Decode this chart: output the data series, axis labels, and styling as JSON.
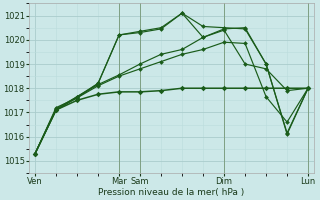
{
  "xlabel": "Pression niveau de la mer( hPa )",
  "ylim": [
    1014.5,
    1021.5
  ],
  "yticks": [
    1015,
    1016,
    1017,
    1018,
    1019,
    1020,
    1021
  ],
  "bg_color": "#cce8e8",
  "grid_major_color": "#aacccc",
  "grid_minor_color": "#bbdddd",
  "line_color": "#1a5c1a",
  "xtick_labels": [
    "Ven",
    "Mar",
    "Sam",
    "Dim",
    "Lun"
  ],
  "xtick_positions": [
    0,
    4,
    5,
    9,
    13
  ],
  "vline_positions": [
    4,
    5,
    9,
    13
  ],
  "xlim": [
    -0.3,
    13.3
  ],
  "lines": [
    {
      "x": [
        0,
        1,
        2,
        3,
        4,
        5,
        6,
        7,
        8,
        9,
        10,
        11,
        12,
        13
      ],
      "y": [
        1015.3,
        1017.1,
        1017.5,
        1017.75,
        1017.85,
        1017.85,
        1017.9,
        1018.0,
        1018.0,
        1018.0,
        1018.0,
        1018.0,
        1018.0,
        1018.0
      ]
    },
    {
      "x": [
        0,
        1,
        2,
        3,
        4,
        5,
        6,
        7,
        8,
        9,
        10,
        11,
        12,
        13
      ],
      "y": [
        1015.3,
        1017.2,
        1017.6,
        1018.1,
        1018.5,
        1018.8,
        1019.1,
        1019.4,
        1019.6,
        1019.9,
        1019.85,
        1017.65,
        1016.6,
        1018.0
      ]
    },
    {
      "x": [
        0,
        1,
        2,
        3,
        4,
        5,
        6,
        7,
        8,
        9,
        10,
        11,
        12,
        13
      ],
      "y": [
        1015.3,
        1017.15,
        1017.65,
        1018.15,
        1018.55,
        1019.0,
        1019.4,
        1019.6,
        1020.1,
        1020.4,
        1019.0,
        1018.8,
        1017.9,
        1018.0
      ]
    },
    {
      "x": [
        0,
        1,
        2,
        3,
        4,
        5,
        6,
        7,
        8,
        9,
        10,
        11,
        12,
        13
      ],
      "y": [
        1015.3,
        1017.1,
        1017.6,
        1018.2,
        1020.2,
        1020.3,
        1020.45,
        1021.1,
        1020.1,
        1020.45,
        1020.5,
        1019.0,
        1016.15,
        1018.0
      ]
    },
    {
      "x": [
        0,
        1,
        2,
        3,
        4,
        5,
        6,
        7,
        8,
        9,
        10,
        11,
        12,
        13
      ],
      "y": [
        1015.3,
        1017.1,
        1017.65,
        1018.2,
        1020.2,
        1020.35,
        1020.5,
        1021.1,
        1020.55,
        1020.5,
        1020.45,
        1019.0,
        1016.1,
        1018.0
      ]
    }
  ],
  "n_xminor": 1,
  "n_yminor": 2
}
